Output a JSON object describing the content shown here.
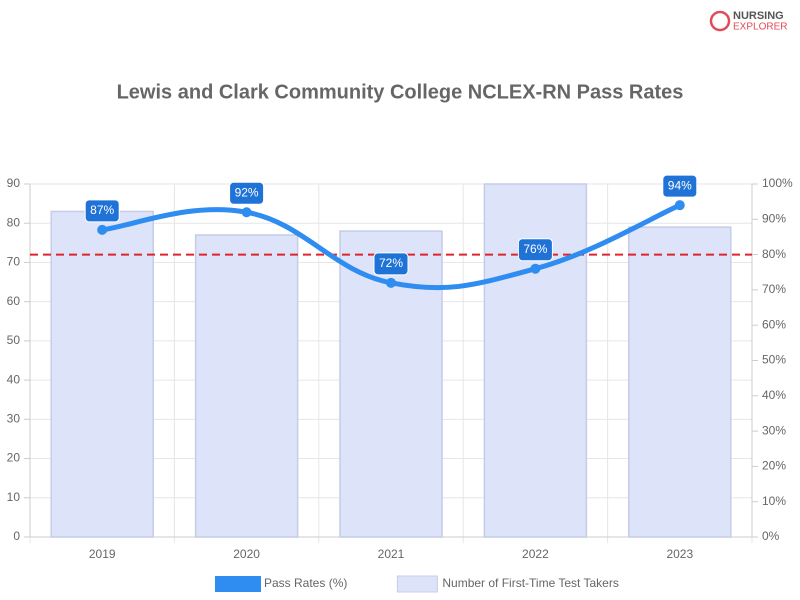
{
  "chart_data": {
    "type": "combo",
    "title": "Lewis and Clark Community College NCLEX-RN Pass Rates",
    "logo": {
      "line1": "NURSING",
      "line2": "EXPLORER"
    },
    "categories": [
      "2019",
      "2020",
      "2021",
      "2022",
      "2023"
    ],
    "series": [
      {
        "name": "Pass Rates (%)",
        "type": "line",
        "axis": "y2",
        "color": "#2f8cf0",
        "values": [
          87,
          92,
          72,
          76,
          94
        ],
        "value_labels": [
          "87%",
          "92%",
          "72%",
          "76%",
          "94%"
        ]
      },
      {
        "name": "Number of First-Time Test Takers",
        "type": "bar",
        "color": "#dde3f8",
        "values": [
          83,
          77,
          78,
          90,
          79
        ]
      }
    ],
    "reference_line": {
      "value": 80,
      "axis": "y2",
      "color": "#e0242b"
    },
    "ylim": [
      0,
      90
    ],
    "yticks": [
      0,
      10,
      20,
      30,
      40,
      50,
      60,
      70,
      80,
      90
    ],
    "y2lim": [
      0,
      100
    ],
    "y2ticks": [
      {
        "value": 0,
        "label": "0%"
      },
      {
        "value": 10,
        "label": "10%"
      },
      {
        "value": 20,
        "label": "20%"
      },
      {
        "value": 30,
        "label": "30%"
      },
      {
        "value": 40,
        "label": "40%"
      },
      {
        "value": 50,
        "label": "50%"
      },
      {
        "value": 60,
        "label": "60%"
      },
      {
        "value": 70,
        "label": "70%"
      },
      {
        "value": 80,
        "label": "80%"
      },
      {
        "value": 90,
        "label": "90%"
      },
      {
        "value": 100,
        "label": "100%"
      }
    ],
    "grid": true
  }
}
